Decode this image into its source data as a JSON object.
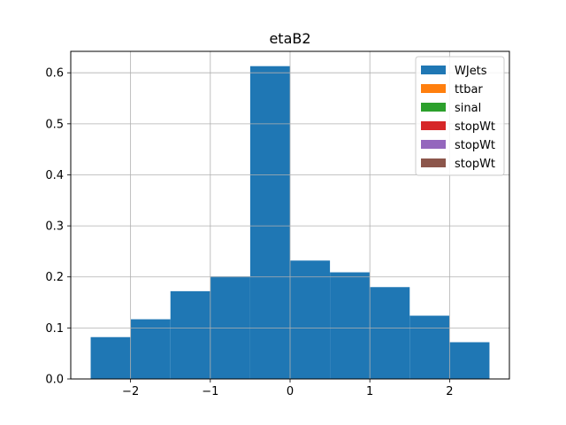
{
  "chart_data": {
    "type": "bar",
    "title": "etaB2",
    "xlabel": "",
    "ylabel": "",
    "xlim": [
      -2.75,
      2.75
    ],
    "ylim": [
      0,
      0.642
    ],
    "grid": true,
    "legend_position": "top-right",
    "bin_edges": [
      -2.5,
      -2.0,
      -1.5,
      -1.0,
      -0.5,
      0.0,
      0.5,
      1.0,
      1.5,
      2.0,
      2.5
    ],
    "series": [
      {
        "name": "WJets",
        "color": "#1f77b4",
        "values": [
          0.082,
          0.117,
          0.172,
          0.201,
          0.613,
          0.232,
          0.209,
          0.18,
          0.124,
          0.072
        ]
      },
      {
        "name": "ttbar",
        "color": "#ff7f0e",
        "values": []
      },
      {
        "name": "sinal",
        "color": "#2ca02c",
        "values": []
      },
      {
        "name": "stopWt",
        "color": "#d62728",
        "values": []
      },
      {
        "name": "stopWt",
        "color": "#9467bd",
        "values": []
      },
      {
        "name": "stopWt",
        "color": "#8c564b",
        "values": []
      }
    ],
    "x_ticks": [
      {
        "value": -2,
        "label": "−2"
      },
      {
        "value": -1,
        "label": "−1"
      },
      {
        "value": 0,
        "label": "0"
      },
      {
        "value": 1,
        "label": "1"
      },
      {
        "value": 2,
        "label": "2"
      }
    ],
    "y_ticks": [
      {
        "value": 0.0,
        "label": "0.0"
      },
      {
        "value": 0.1,
        "label": "0.1"
      },
      {
        "value": 0.2,
        "label": "0.2"
      },
      {
        "value": 0.3,
        "label": "0.3"
      },
      {
        "value": 0.4,
        "label": "0.4"
      },
      {
        "value": 0.5,
        "label": "0.5"
      },
      {
        "value": 0.6,
        "label": "0.6"
      }
    ]
  }
}
